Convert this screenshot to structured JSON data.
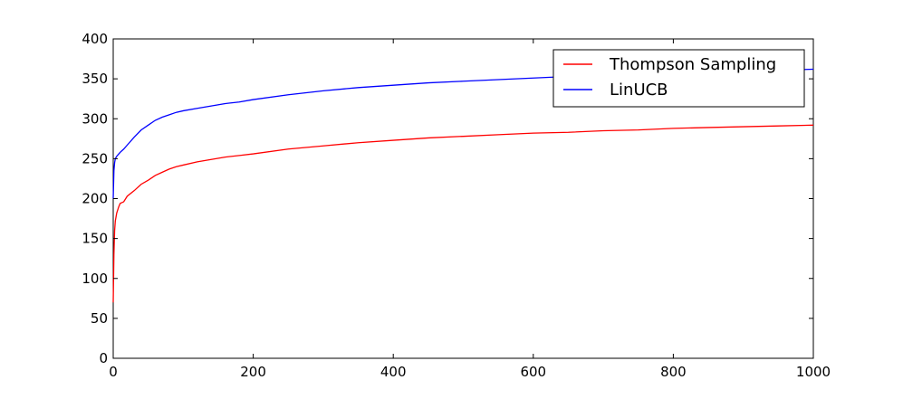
{
  "chart_data": {
    "type": "line",
    "title": "",
    "xlabel": "",
    "ylabel": "",
    "xlim": [
      0,
      1000
    ],
    "ylim": [
      0,
      400
    ],
    "xticks": [
      0,
      200,
      400,
      600,
      800,
      1000
    ],
    "yticks": [
      0,
      50,
      100,
      150,
      200,
      250,
      300,
      350,
      400
    ],
    "grid": false,
    "legend_position": "top-right",
    "series": [
      {
        "name": "Thompson Sampling",
        "color": "#ff0000",
        "x": [
          0,
          1,
          2,
          3,
          5,
          8,
          10,
          15,
          20,
          30,
          40,
          50,
          60,
          70,
          80,
          90,
          100,
          120,
          140,
          160,
          180,
          200,
          250,
          300,
          350,
          400,
          450,
          500,
          550,
          600,
          650,
          700,
          750,
          800,
          850,
          900,
          950,
          1000
        ],
        "y": [
          70,
          130,
          160,
          172,
          182,
          190,
          194,
          196,
          203,
          210,
          218,
          223,
          229,
          233,
          237,
          240,
          242,
          246,
          249,
          252,
          254,
          256,
          262,
          266,
          270,
          273,
          276,
          278,
          280,
          282,
          283,
          285,
          286,
          288,
          289,
          290,
          291,
          292
        ]
      },
      {
        "name": "LinUCB",
        "color": "#0000ff",
        "x": [
          0,
          1,
          2,
          3,
          5,
          8,
          10,
          15,
          20,
          30,
          40,
          50,
          60,
          70,
          80,
          90,
          100,
          120,
          140,
          160,
          180,
          200,
          250,
          300,
          350,
          400,
          450,
          500,
          550,
          600,
          650,
          700,
          750,
          800,
          850,
          900,
          950,
          1000
        ],
        "y": [
          200,
          235,
          245,
          250,
          253,
          256,
          258,
          262,
          267,
          277,
          286,
          292,
          298,
          302,
          305,
          308,
          310,
          313,
          316,
          319,
          321,
          324,
          330,
          335,
          339,
          342,
          345,
          347,
          349,
          351,
          353,
          354,
          356,
          357,
          359,
          360,
          361,
          362
        ]
      }
    ]
  }
}
